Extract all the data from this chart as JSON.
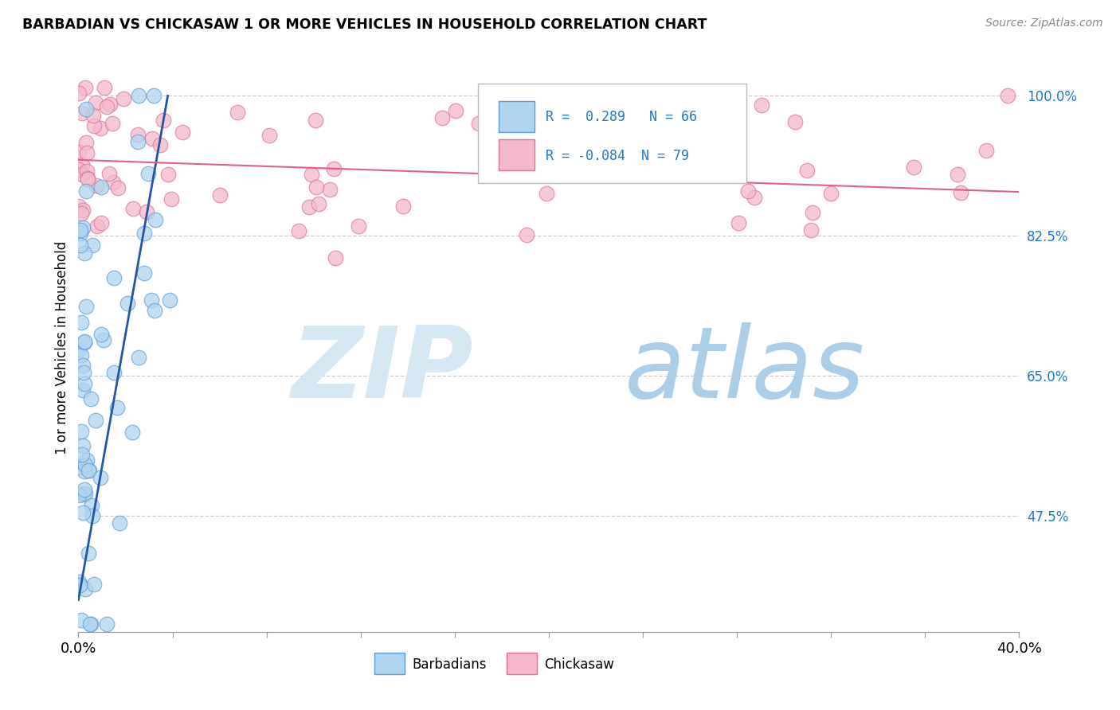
{
  "title": "BARBADIAN VS CHICKASAW 1 OR MORE VEHICLES IN HOUSEHOLD CORRELATION CHART",
  "source_text": "Source: ZipAtlas.com",
  "ylabel": "1 or more Vehicles in Household",
  "xlim": [
    0.0,
    40.0
  ],
  "ylim": [
    33.0,
    104.0
  ],
  "yticks_right": [
    47.5,
    65.0,
    82.5,
    100.0
  ],
  "legend_r_blue": "0.289",
  "legend_n_blue": "66",
  "legend_r_pink": "-0.084",
  "legend_n_pink": "79",
  "blue_fill": "#aed4ef",
  "blue_edge": "#5b9bd5",
  "pink_fill": "#f4b8cb",
  "pink_edge": "#e07090",
  "blue_line_color": "#2255aa",
  "pink_line_color": "#e06080",
  "watermark_zip_color": "#d8e8f4",
  "watermark_atlas_color": "#b0cfe8",
  "background_color": "#ffffff",
  "grid_color": "#cccccc",
  "right_tick_color": "#2277cc"
}
